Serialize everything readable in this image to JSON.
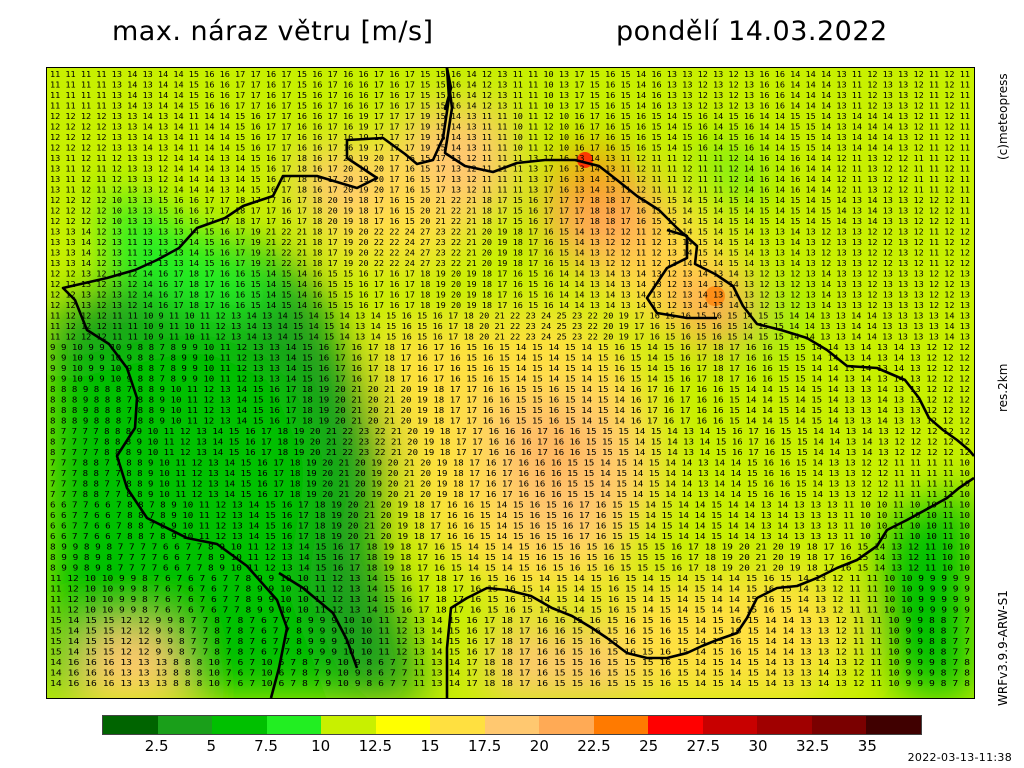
{
  "header": {
    "title": "max. náraz větru [m/s]",
    "date": "pondělí 14.03.2022"
  },
  "side_labels": {
    "copyright": "(c)meteopress",
    "resolution": "res.2km",
    "model": "WRFv3.9.9-ARW-S1"
  },
  "legend": {
    "colors": [
      "#006400",
      "#1a9f1a",
      "#00c000",
      "#22ee22",
      "#c8f000",
      "#ffff00",
      "#ffe040",
      "#ffc870",
      "#ffaa55",
      "#ff7a00",
      "#ff0000",
      "#c80000",
      "#a00000",
      "#7a0000",
      "#400000"
    ],
    "ticks": [
      "2.5",
      "5",
      "7.5",
      "10",
      "12.5",
      "15",
      "17.5",
      "20",
      "22.5",
      "25",
      "27.5",
      "30",
      "32.5",
      "35"
    ]
  },
  "timestamp": "2022-03-13-11:38",
  "map": {
    "sample_rows": [
      "11 11 11 11 13 14 13 14 14 15 16 16 17 17 16 17 15 16 17 16 16 17 16 17 15 15 16 14 12 13 11 11 10 13 17 15 16 15 14 16 13 13 12 13 12 13 16 16 14 14 14 13 11 12 13 13 12 11 12 11 12",
      "12 12 12 12 13 13 14 13 14 11 14 14 15 16 17 17 16 16 17 16 19 17 17 17 19 15 14 13 11 11 10 11 12 10 16 17 16 15 16 15 14 15 16 14 15 16 14 14 15 15 14 13 14 14 14 13 12 11 12 11 11",
      "13 11 12 11 12 13 13 12 14 14 14 13 14 15 16 17 18 16 17 20 19 20 17 16 15 17 13 12 11 11 11 13 17 16 13 14 13 11 12 11 11 12 11 11 12 14 16 14 16 14 14 12 11 13 12 12 11 11 12 11 12",
      "12 12 12 12 10 13 13 15 16 16 17 17 18 17 17 16 17 18 20 19 18 17 16 15 20 21 22 21 18 17 15 16 17 17 17 18 18 17 16 15 15 14 15 14 15 14 15 14 15 14 15 14 13 14 13 13 12 12 12 11 12",
      "13 13 14 12 13 11 13 13 13 14 15 16 17 19 21 22 21 18 17 19 20 22 22 24 27 23 22 21 20 19 18 17 16 15 14 13 12 12 11 12 13 14 15 14 15 14 13 13 14 13 12 13 13 12 12 13 12 11 12 12 12",
      "12 12 13 12 13 12 14 16 17 18 17 16 16 15 14 15 14 16 15 15 16 17 16 17 18 19 20 19 18 17 16 15 16 14 14 13 14 13 14 13 12 13 14 13 14 13 12 13 12 13 14 13 13 12 13 13 13 12 12 13 13",
      "11 12 12 12 11 11 10 9 11 10 11 12 13 14 13 14 15 14 15 14 13 14 15 16 15 16 17 18 20 21 22 23 24 25 23 22 20 19 17 16 15 16 15 16 15 14 15 15 14 14 13 13 14 14 13 13 13 13 14 13 12",
      "9 9 10 9 9 10 9 8 8 7 8 9 9 10 11 12 13 13 14 15 16 17 16 17 18 17 16 17 16 15 16 15 14 15 14 15 14 15 16 15 14 15 16 17 18 17 16 16 15 15 14 14 13 14 13 14 13 12 12 12 12",
      "8 8 8 9 8 8 8 7 8 8 9 10 11 12 13 14 15 16 17 18 19 20 21 20 21 20 19 18 17 17 16 16 15 15 16 15 14 15 14 16 17 16 17 16 16 15 14 14 15 14 15 14 13 13 14 13 13 12 12 12 12",
      "8 7 7 7 7 8 8 8 9 10 11 12 13 14 15 16 17 18 19 20 21 22 23 22 21 20 19 18 17 17 16 16 16 17 16 16 15 15 15 14 15 14 13 14 15 16 17 16 15 15 14 14 13 14 13 12 12 12 12 12 12",
      "7 7 7 8 8 7 7 8 8 9 10 11 12 13 14 15 16 17 18 19 20 21 20 19 20 21 20 19 18 17 16 17 16 16 16 15 15 14 15 14 15 14 14 13 14 14 15 16 16 15 14 13 13 12 12 11 11 11 11 10 10",
      "6 6 7 7 6 6 7 8 8 7 8 9 10 11 12 13 14 15 16 17 18 19 20 21 20 19 18 17 16 16 15 14 15 16 15 16 17 16 15 15 14 15 14 14 15 14 14 13 14 13 13 13 11 10 10 11 10 10 11 10 10",
      "8 9 9 8 9 8 7 7 7 7 6 6 7 7 8 9 10 11 12 13 14 15 16 17 18 19 18 17 16 15 14 15 14 15 16 15 16 15 16 15 15 15 16 17 18 19 20 21 20 19 18 17 16 15 14 13 12 11 10 10 10",
      "11 12 10 10 9 9 8 7 6 7 6 7 6 7 7 8 9 9 10 10 11 12 13 14 15 16 17 18 17 16 15 16 15 14 15 14 15 16 15 14 15 14 15 14 14 15 16 15 14 13 12 11 11 10 10 9 9 9 9 9 12",
      "15 14 15 15 12 12 9 9 8 7 7 8 7 8 7 6 7 7 8 9 9 9 10 10 11 12 13 14 15 16 17 18 17 16 16 15 16 15 16 15 16 15 14 15 16 15 14 14 13 13 12 11 11 10 9 9 8 8 7 7 9",
      "14 16 16 16 13 13 13 8 8 8 10 7 6 7 10 6 7 8 7 9 10 9 8 6 7 7 11 13 14 17 18 18 17 16 15 15 16 15 15 15 16 15 14 15 14 15 14 13 13 14 13 12 11 10 9 9 9 8 7 8 7"
    ]
  }
}
